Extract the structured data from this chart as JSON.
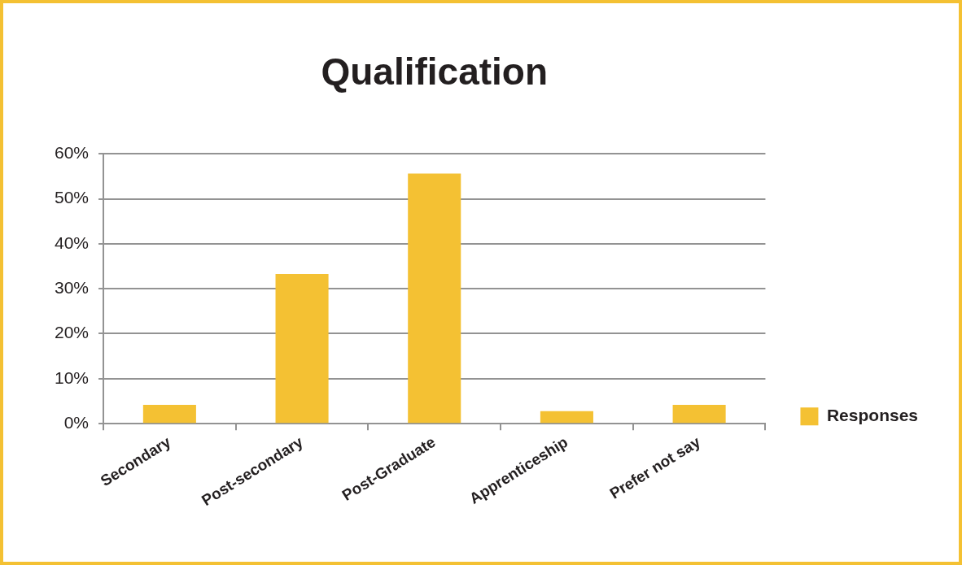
{
  "chart_data": {
    "type": "bar",
    "title": "Qualification",
    "categories": [
      "Secondary",
      "Post-secondary",
      "Post-Graduate",
      "Apprenticeship",
      "Prefer not say"
    ],
    "series": [
      {
        "name": "Responses",
        "color": "#f4c133",
        "values": [
          4.2,
          33.3,
          55.6,
          2.8,
          4.2
        ]
      }
    ],
    "ylim": [
      0,
      60
    ],
    "yticks": [
      {
        "value": 0,
        "label": "0%"
      },
      {
        "value": 10,
        "label": "10%"
      },
      {
        "value": 20,
        "label": "20%"
      },
      {
        "value": 30,
        "label": "30%"
      },
      {
        "value": 40,
        "label": "40%"
      },
      {
        "value": 50,
        "label": "50%"
      },
      {
        "value": 60,
        "label": "60%"
      }
    ],
    "grid": "y",
    "legend": "right"
  }
}
